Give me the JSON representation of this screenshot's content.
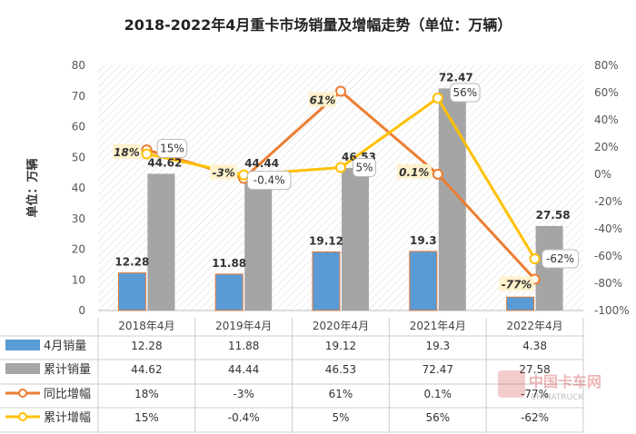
{
  "chart_data": {
    "type": "bar",
    "title": "2018-2022年4月重卡市场销量及增幅走势（单位：万辆）",
    "ylabel": "单位：万辆",
    "categories": [
      "2018年4月",
      "2019年4月",
      "2020年4月",
      "2021年4月",
      "2022年4月"
    ],
    "ylim": [
      0,
      80
    ],
    "yticks": [
      0,
      10,
      20,
      30,
      40,
      50,
      60,
      70,
      80
    ],
    "y2lim": [
      -100,
      80
    ],
    "y2ticks": [
      "-100%",
      "-80%",
      "-60%",
      "-40%",
      "-20%",
      "0%",
      "20%",
      "40%",
      "60%",
      "80%"
    ],
    "grid": false,
    "series": [
      {
        "name": "4月销量",
        "kind": "bar",
        "axis": "left",
        "color": "#5b9bd5",
        "values": [
          12.28,
          11.88,
          19.12,
          19.3,
          4.38
        ],
        "labels": [
          "12.28",
          "11.88",
          "19.12",
          "19.3",
          "4.38"
        ]
      },
      {
        "name": "累计销量",
        "kind": "bar",
        "axis": "left",
        "color": "#a5a5a5",
        "values": [
          44.62,
          44.44,
          46.53,
          72.47,
          27.58
        ],
        "labels": [
          "44.62",
          "44.44",
          "46.53",
          "72.47",
          "27.58"
        ]
      },
      {
        "name": "同比增幅",
        "kind": "line",
        "axis": "right",
        "color": "#ed7d31",
        "values": [
          18,
          -3,
          61,
          0.1,
          -77
        ],
        "labels": [
          "18%",
          "-3%",
          "61%",
          "0.1%",
          "-77%"
        ]
      },
      {
        "name": "累计增幅",
        "kind": "line",
        "axis": "right",
        "color": "#ffc000",
        "values": [
          15,
          -0.4,
          5,
          56,
          -62
        ],
        "labels": [
          "15%",
          "-0.4%",
          "5%",
          "56%",
          "-62%"
        ]
      }
    ]
  },
  "watermark": {
    "logo_text": "中国卡车网",
    "sub_text": "CHINATRUCK"
  }
}
